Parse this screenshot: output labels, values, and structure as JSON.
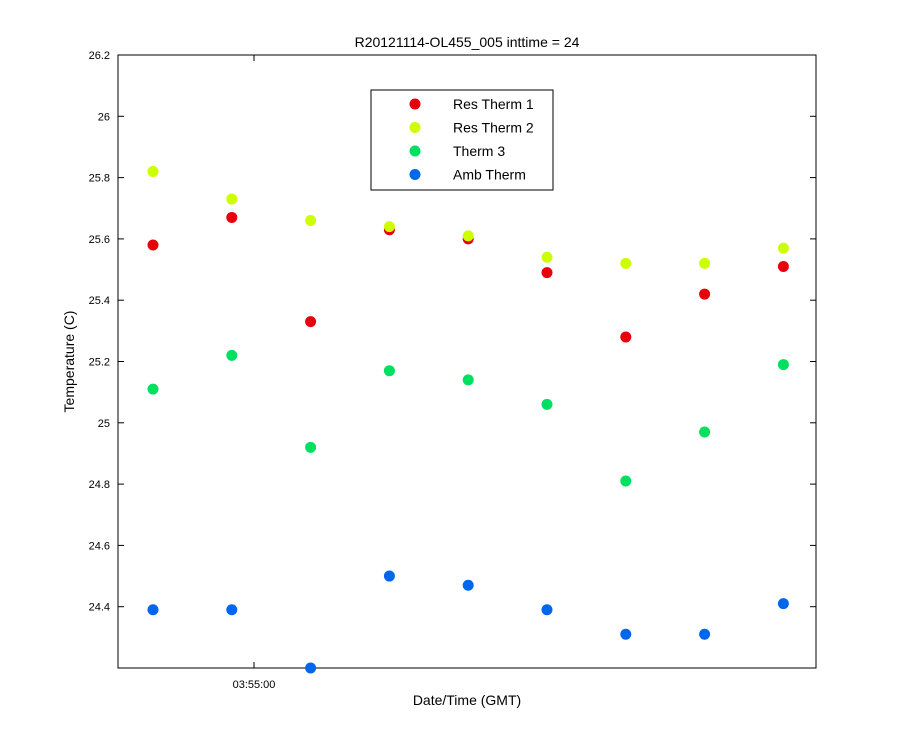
{
  "chart_data": {
    "type": "scatter",
    "title": "R20121114-OL455_005 inttime = 24",
    "xlabel": "Date/Time (GMT)",
    "ylabel": "Temperature (C)",
    "ylim": [
      24.2,
      26.2
    ],
    "yticks": [
      "24.4",
      "24.6",
      "24.8",
      "25",
      "25.2",
      "25.4",
      "25.6",
      "25.8",
      "26",
      "26.2"
    ],
    "x_tick_labels": [
      "03:55:00"
    ],
    "legend": "top-center",
    "grid": false,
    "series": [
      {
        "name": "Res Therm 1",
        "color": "#e8000b",
        "values": [
          25.58,
          25.67,
          25.33,
          25.63,
          25.6,
          25.49,
          25.28,
          25.42,
          25.51
        ]
      },
      {
        "name": "Res Therm 2",
        "color": "#ccff00",
        "values": [
          25.82,
          25.73,
          25.66,
          25.64,
          25.61,
          25.54,
          25.52,
          25.52,
          25.57
        ]
      },
      {
        "name": "Therm 3",
        "color": "#00e060",
        "values": [
          25.11,
          25.22,
          24.92,
          25.17,
          25.14,
          25.06,
          24.81,
          24.97,
          25.19
        ]
      },
      {
        "name": "Amb Therm",
        "color": "#0066ee",
        "values": [
          24.39,
          24.39,
          24.2,
          24.5,
          24.47,
          24.39,
          24.31,
          24.31,
          24.41
        ]
      }
    ]
  }
}
